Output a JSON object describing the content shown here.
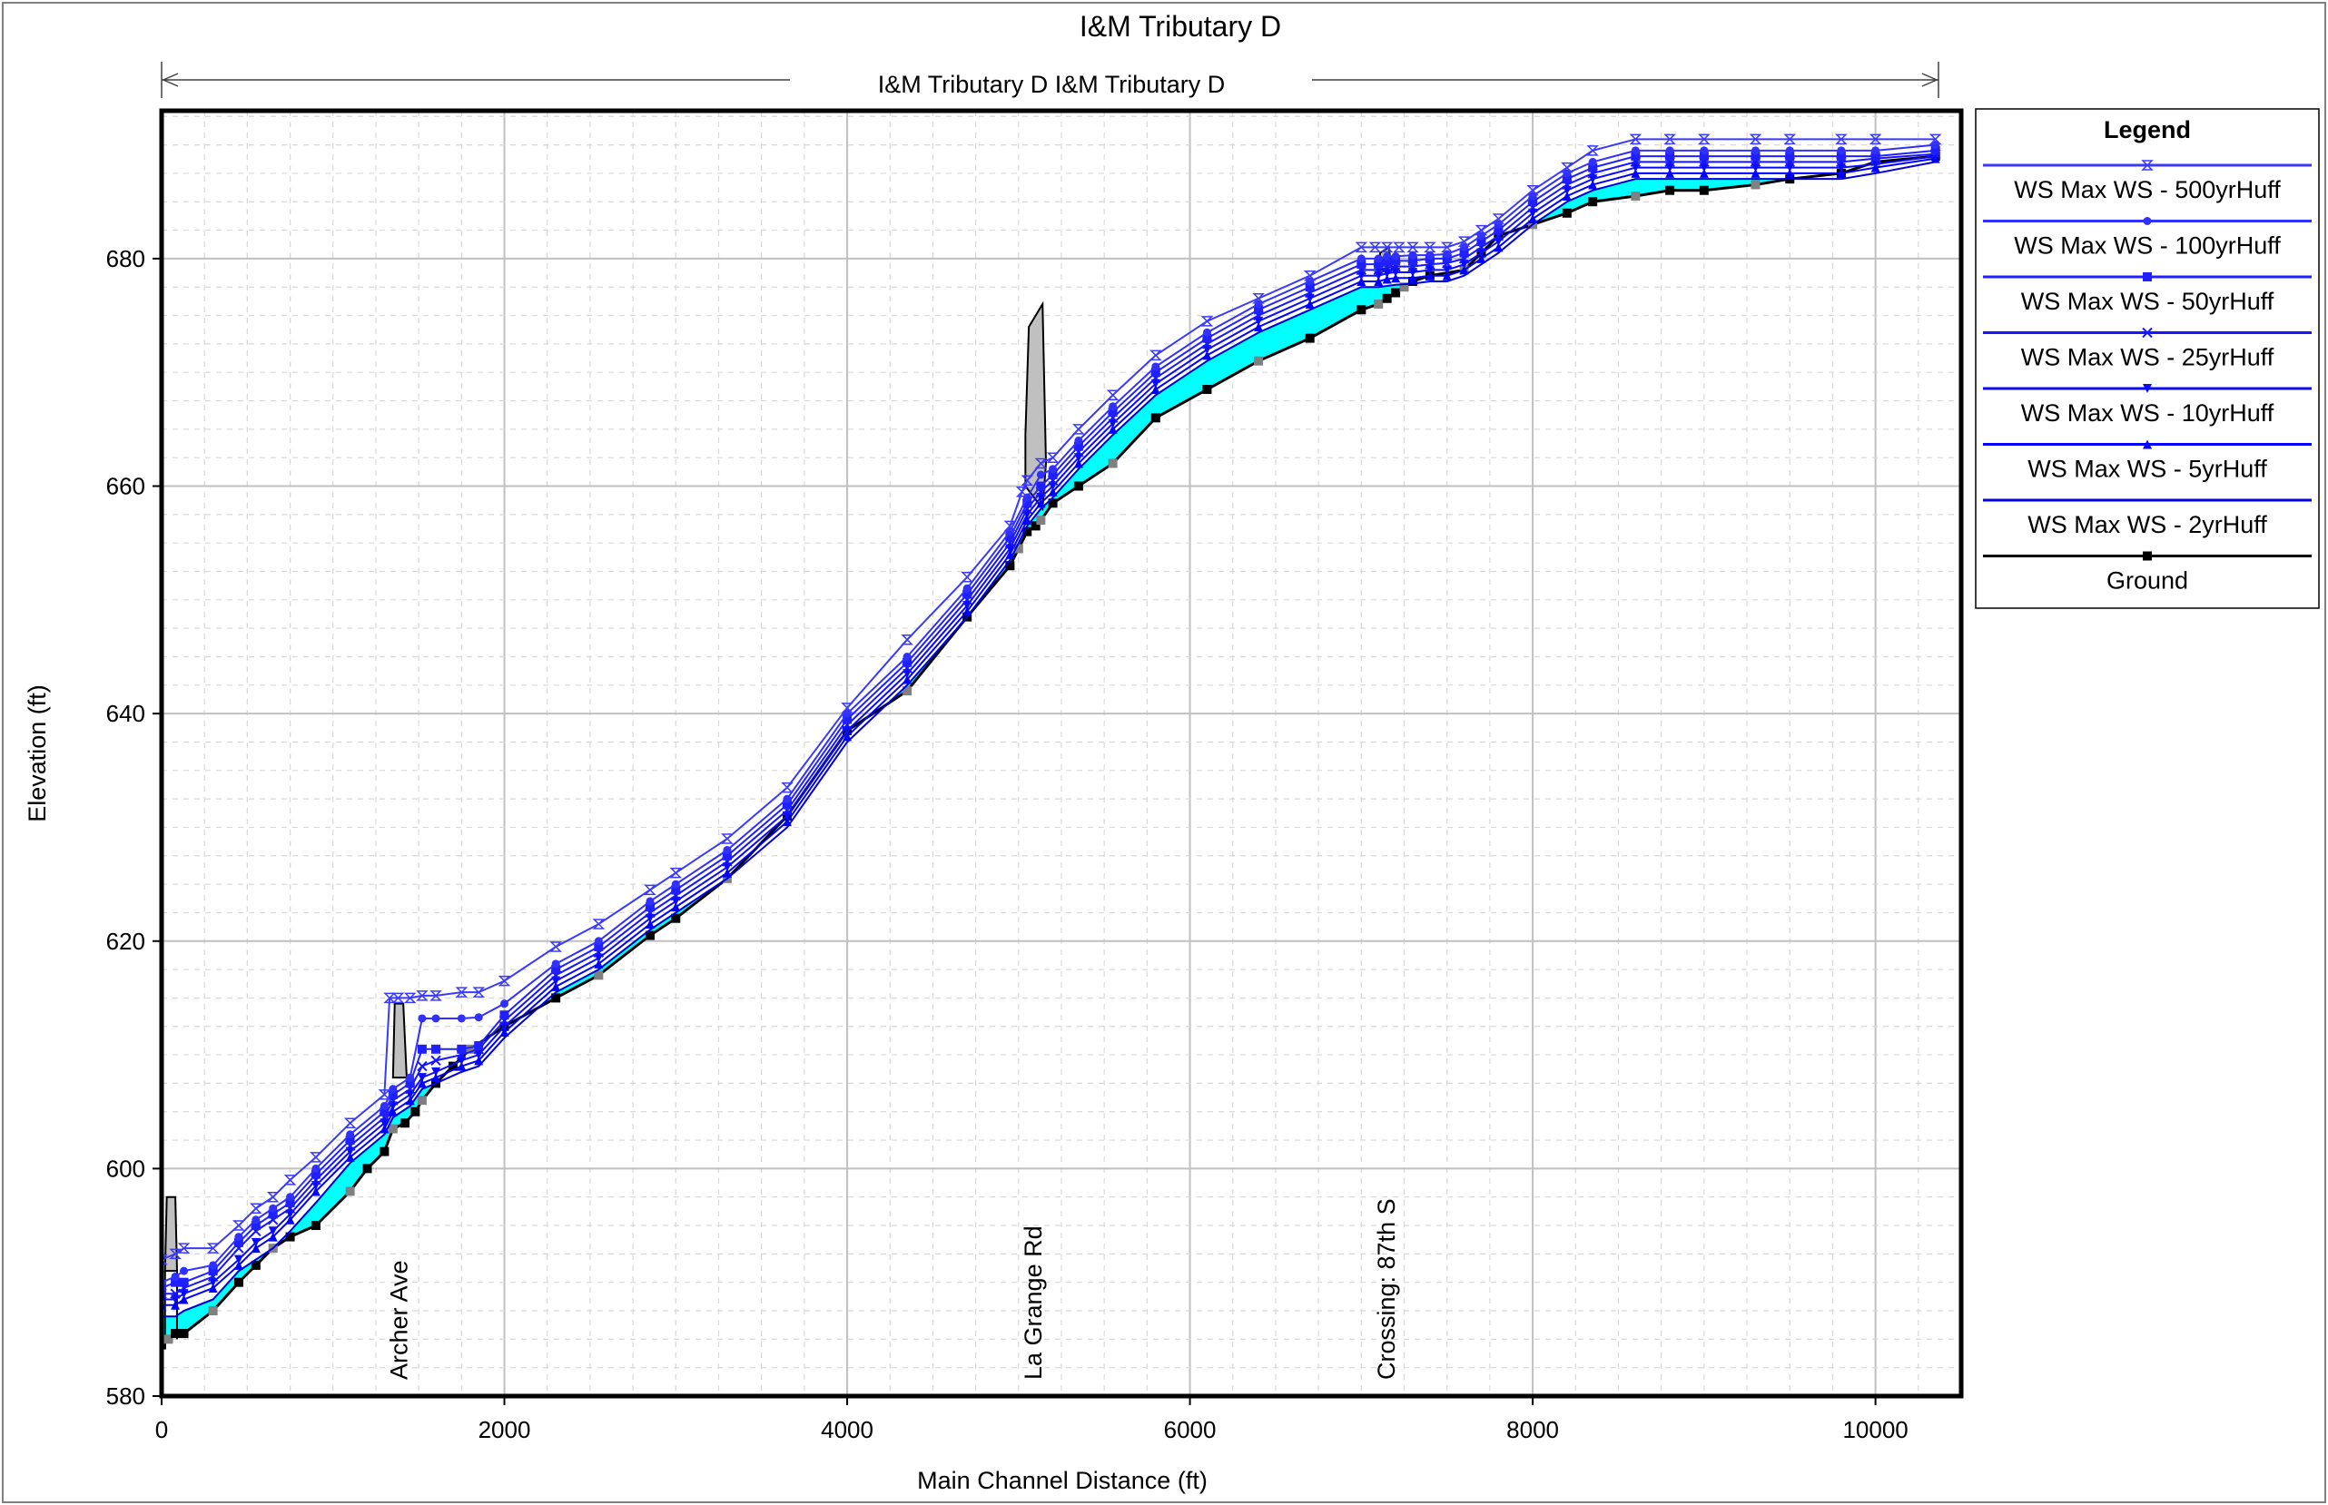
{
  "chart_data": {
    "type": "line",
    "title": "I&M Tributary D",
    "subtitle": "I&M Tributary D I&M Tributary D",
    "xlabel": "Main Channel Distance (ft)",
    "ylabel": "Elevation (ft)",
    "xlim": [
      0,
      10500
    ],
    "ylim": [
      580,
      693
    ],
    "x_ticks": [
      "0",
      "2000",
      "4000",
      "6000",
      "8000",
      "10000"
    ],
    "x_tick_values": [
      0,
      2000,
      4000,
      6000,
      8000,
      10000
    ],
    "y_ticks": [
      "580",
      "600",
      "620",
      "640",
      "660",
      "680"
    ],
    "y_tick_values": [
      580,
      600,
      620,
      640,
      660,
      680
    ],
    "grid": true,
    "legend_title": "Legend",
    "legend_position": "right",
    "series": [
      {
        "name": "WS  Max WS - 500yrHuff",
        "color": "#3a3aff",
        "marker": "hourglass",
        "x": [
          0,
          80,
          130,
          300,
          450,
          550,
          650,
          750,
          900,
          1100,
          1300,
          1330,
          1380,
          1450,
          1520,
          1600,
          1750,
          1850,
          2000,
          2300,
          2550,
          2850,
          3000,
          3300,
          3650,
          4000,
          4350,
          4700,
          4950,
          5020,
          5050,
          5130,
          5200,
          5350,
          5550,
          5800,
          6100,
          6400,
          6700,
          7000,
          7080,
          7150,
          7220,
          7300,
          7400,
          7500,
          7600,
          7700,
          7800,
          8000,
          8200,
          8350,
          8600,
          8800,
          9000,
          9300,
          9500,
          9800,
          10000,
          10350
        ],
        "y": [
          592,
          592.5,
          593,
          593,
          595,
          596.5,
          597.5,
          599,
          601,
          604,
          606.5,
          615,
          615,
          615,
          615.2,
          615.2,
          615.5,
          615.5,
          616.5,
          619.5,
          621.5,
          624.5,
          626,
          629,
          633.5,
          640.5,
          646.5,
          652,
          656.5,
          659.5,
          660.5,
          662,
          662.5,
          665,
          668,
          671.5,
          674.5,
          676.5,
          678.5,
          681,
          681,
          681,
          681,
          681,
          681,
          681,
          681.5,
          682.5,
          683.5,
          686,
          688,
          689.5,
          690.5,
          690.5,
          690.5,
          690.5,
          690.5,
          690.5,
          690.5,
          690.5
        ]
      },
      {
        "name": "WS  Max WS - 100yrHuff",
        "color": "#3030ff",
        "marker": "circle",
        "x": [
          0,
          80,
          130,
          300,
          450,
          550,
          650,
          750,
          900,
          1100,
          1300,
          1350,
          1450,
          1520,
          1600,
          1750,
          1850,
          2000,
          2300,
          2550,
          2850,
          3000,
          3300,
          3650,
          4000,
          4350,
          4700,
          4950,
          5050,
          5130,
          5200,
          5350,
          5550,
          5800,
          6100,
          6400,
          6700,
          7000,
          7100,
          7150,
          7200,
          7300,
          7400,
          7500,
          7600,
          7700,
          7800,
          8000,
          8200,
          8350,
          8600,
          8800,
          9000,
          9300,
          9500,
          9800,
          10000,
          10350
        ],
        "y": [
          590,
          590.5,
          591,
          591.5,
          594,
          595.5,
          596.5,
          597.5,
          600,
          603,
          605.5,
          607,
          608,
          613.2,
          613.2,
          613.2,
          613.3,
          614.5,
          618,
          620,
          623.5,
          625,
          628,
          632.5,
          640,
          645,
          651,
          656,
          659,
          661,
          661.5,
          664,
          667,
          670.5,
          673.5,
          676,
          678,
          680,
          680,
          680.2,
          680.2,
          680.3,
          680.3,
          680.4,
          681,
          682,
          683,
          685.5,
          687.5,
          688.5,
          689.5,
          689.5,
          689.5,
          689.5,
          689.5,
          689.5,
          689.5,
          690
        ]
      },
      {
        "name": "WS  Max WS - 50yrHuff",
        "color": "#2020ff",
        "marker": "square",
        "x": [
          0,
          80,
          130,
          300,
          450,
          550,
          650,
          750,
          900,
          1100,
          1300,
          1350,
          1450,
          1520,
          1600,
          1750,
          1850,
          2000,
          2300,
          2550,
          2850,
          3000,
          3300,
          3650,
          4000,
          4350,
          4700,
          4950,
          5050,
          5130,
          5200,
          5350,
          5550,
          5800,
          6100,
          6400,
          6700,
          7000,
          7100,
          7150,
          7200,
          7300,
          7400,
          7500,
          7600,
          7700,
          7800,
          8000,
          8200,
          8350,
          8600,
          8800,
          9000,
          9300,
          9500,
          9800,
          10000,
          10350
        ],
        "y": [
          589.5,
          590,
          590,
          591,
          593.5,
          595,
          596,
          597,
          599.5,
          602.5,
          605,
          606.5,
          607.5,
          610.5,
          610.5,
          610.5,
          610.8,
          613.5,
          617.5,
          619.5,
          623,
          624.5,
          627.5,
          632,
          639.5,
          644.5,
          650.5,
          655.5,
          658.5,
          660,
          661,
          663.5,
          666.5,
          670,
          673,
          675.5,
          677.5,
          679.5,
          679.5,
          679.7,
          679.8,
          679.8,
          680,
          680,
          680.5,
          681.5,
          682.5,
          685,
          687,
          688,
          689,
          689,
          689,
          689,
          689,
          689,
          689,
          689.5
        ]
      },
      {
        "name": "WS  Max WS - 25yrHuff",
        "color": "#1515ff",
        "marker": "cross",
        "x": [
          0,
          80,
          130,
          300,
          450,
          550,
          650,
          750,
          900,
          1100,
          1300,
          1350,
          1450,
          1520,
          1600,
          1750,
          1850,
          2000,
          2300,
          2550,
          2850,
          3000,
          3300,
          3650,
          4000,
          4350,
          4700,
          4950,
          5050,
          5130,
          5200,
          5350,
          5550,
          5800,
          6100,
          6400,
          6700,
          7000,
          7100,
          7150,
          7200,
          7300,
          7400,
          7500,
          7600,
          7700,
          7800,
          8000,
          8200,
          8350,
          8600,
          8800,
          9000,
          9300,
          9500,
          9800,
          10000,
          10350
        ],
        "y": [
          589,
          589,
          589.5,
          590.5,
          593,
          594.5,
          595.5,
          596.5,
          599,
          602,
          604.5,
          606,
          607,
          609,
          609.5,
          610,
          610.5,
          613,
          617,
          619,
          622.5,
          624,
          627,
          631.5,
          639,
          644,
          650,
          655,
          658,
          659.5,
          660.5,
          663,
          666,
          669.5,
          672.5,
          675,
          677,
          679,
          679,
          679.2,
          679.3,
          679.3,
          679.5,
          679.6,
          680,
          681,
          682,
          684.5,
          686.5,
          687.5,
          688.5,
          688.5,
          688.5,
          688.5,
          688.5,
          688.5,
          688.8,
          689.2
        ]
      },
      {
        "name": "WS  Max WS - 10yrHuff",
        "color": "#0a0aff",
        "marker": "triangle-down",
        "x": [
          0,
          80,
          130,
          300,
          450,
          550,
          650,
          750,
          900,
          1100,
          1300,
          1350,
          1450,
          1520,
          1600,
          1750,
          1850,
          2000,
          2300,
          2550,
          2850,
          3000,
          3300,
          3650,
          4000,
          4350,
          4700,
          4950,
          5050,
          5130,
          5200,
          5350,
          5550,
          5800,
          6100,
          6400,
          6700,
          7000,
          7100,
          7150,
          7200,
          7300,
          7400,
          7500,
          7600,
          7700,
          7800,
          8000,
          8200,
          8350,
          8600,
          8800,
          9000,
          9300,
          9500,
          9800,
          10000,
          10350
        ],
        "y": [
          588.5,
          588.5,
          589,
          590,
          592,
          593.5,
          594.5,
          596,
          598.5,
          601.5,
          604,
          605.5,
          606.5,
          608,
          608.5,
          609.5,
          610,
          612.5,
          616.5,
          618.5,
          622,
          623.5,
          626.5,
          631,
          638.5,
          643.5,
          649.5,
          654.5,
          657.5,
          659,
          660,
          662.5,
          665.5,
          669,
          672,
          674.5,
          676.5,
          678.5,
          678.5,
          678.7,
          678.8,
          678.8,
          679,
          679,
          679.5,
          680.5,
          681.5,
          684,
          686,
          687,
          688,
          688,
          688,
          688,
          688,
          688,
          688.3,
          689
        ]
      },
      {
        "name": "WS  Max WS - 5yrHuff",
        "color": "#0000ff",
        "marker": "triangle-up",
        "x": [
          0,
          80,
          130,
          300,
          450,
          550,
          650,
          750,
          900,
          1100,
          1300,
          1350,
          1450,
          1520,
          1600,
          1750,
          1850,
          2000,
          2300,
          2550,
          2850,
          3000,
          3300,
          3650,
          4000,
          4350,
          4700,
          4950,
          5050,
          5130,
          5200,
          5350,
          5550,
          5800,
          6100,
          6400,
          6700,
          7000,
          7100,
          7150,
          7200,
          7300,
          7400,
          7500,
          7600,
          7700,
          7800,
          8000,
          8200,
          8350,
          8600,
          8800,
          9000,
          9300,
          9500,
          9800,
          10000,
          10350
        ],
        "y": [
          588,
          588,
          588.5,
          589.5,
          591.5,
          593,
          594,
          595.5,
          598,
          601,
          603.5,
          605,
          606,
          607.5,
          608,
          609,
          609.5,
          612,
          616,
          618,
          621.5,
          623,
          626,
          630.5,
          638,
          643,
          649,
          654,
          657,
          658.5,
          659.5,
          662,
          665,
          668.5,
          671.5,
          674,
          676,
          678,
          678,
          678.2,
          678.3,
          678.3,
          678.5,
          678.5,
          679,
          680,
          681,
          683.5,
          685.5,
          686.5,
          687.5,
          687.5,
          687.5,
          687.5,
          687.5,
          687.5,
          688,
          688.8
        ]
      },
      {
        "name": "WS  Max WS - 2yrHuff",
        "color": "#0000dd",
        "marker": "none",
        "x": [
          0,
          80,
          130,
          300,
          450,
          550,
          650,
          750,
          900,
          1100,
          1300,
          1350,
          1450,
          1520,
          1600,
          1750,
          1850,
          2000,
          2300,
          2550,
          2850,
          3000,
          3300,
          3650,
          4000,
          4350,
          4700,
          4950,
          5050,
          5130,
          5200,
          5350,
          5550,
          5800,
          6100,
          6400,
          6700,
          7000,
          7100,
          7150,
          7200,
          7300,
          7400,
          7500,
          7600,
          7700,
          7800,
          8000,
          8200,
          8350,
          8600,
          8800,
          9000,
          9300,
          9500,
          9800,
          10000,
          10350
        ],
        "y": [
          587,
          587,
          587.5,
          588.5,
          591,
          592,
          593,
          594.5,
          597,
          600.5,
          603,
          604.5,
          605.5,
          607,
          607.5,
          608.5,
          609,
          611.5,
          615.5,
          617.5,
          621,
          622.5,
          625.5,
          630,
          637.5,
          642.5,
          648.5,
          653.5,
          656.5,
          658,
          659,
          661.5,
          664.5,
          668,
          671,
          673.5,
          675.5,
          677.5,
          677.5,
          677.6,
          677.7,
          677.8,
          678,
          678,
          678.5,
          679.5,
          680.5,
          683,
          685,
          686,
          687,
          687,
          687,
          687,
          687,
          687,
          687.5,
          688.5
        ]
      },
      {
        "name": "Ground",
        "color": "#000000",
        "marker": "square",
        "x": [
          0,
          40,
          80,
          130,
          300,
          450,
          550,
          650,
          750,
          900,
          1100,
          1200,
          1300,
          1350,
          1420,
          1480,
          1520,
          1600,
          1700,
          1800,
          2000,
          2300,
          2550,
          2850,
          3000,
          3300,
          3650,
          4000,
          4350,
          4700,
          4950,
          5000,
          5050,
          5100,
          5130,
          5200,
          5350,
          5550,
          5800,
          6100,
          6400,
          6700,
          7000,
          7100,
          7150,
          7200,
          7250,
          7300,
          7400,
          7600,
          7700,
          7800,
          8000,
          8200,
          8350,
          8600,
          8800,
          9000,
          9300,
          9500,
          9800,
          10000,
          10350
        ],
        "y": [
          584.5,
          585,
          585.5,
          585.5,
          587.5,
          590,
          591.5,
          593,
          594,
          595,
          598,
          600,
          601.5,
          603.5,
          604,
          605,
          606,
          607.5,
          609,
          610.5,
          612.5,
          615,
          617,
          620.5,
          622,
          625.5,
          631,
          638.5,
          642,
          648.5,
          653,
          654.5,
          656,
          656.5,
          657,
          658.5,
          660,
          662,
          666,
          668.5,
          671,
          673,
          675.5,
          676,
          676.5,
          677,
          677.5,
          678,
          678.5,
          679,
          680.5,
          682,
          683,
          684,
          685,
          685.5,
          686,
          686,
          686.5,
          687,
          687.5,
          688.5,
          689
        ]
      }
    ],
    "structures": [
      {
        "label": "Archer Ave",
        "x": 1380
      },
      {
        "label": "La Grange Rd",
        "x": 5080
      },
      {
        "label": "Crossing: 87th S",
        "x": 7140
      }
    ],
    "upstream_marker_label": "I&M Tributary D I&M Tributary D"
  }
}
